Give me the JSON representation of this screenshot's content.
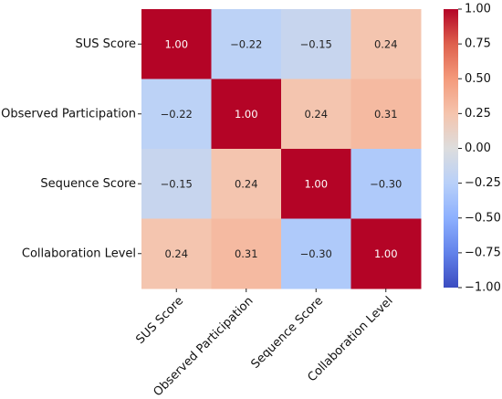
{
  "chart_data": {
    "type": "heatmap",
    "title": "",
    "row_labels": [
      "SUS Score",
      "Observed Participation",
      "Sequence Score",
      "Collaboration Level"
    ],
    "col_labels": [
      "SUS Score",
      "Observed Participation",
      "Sequence Score",
      "Collaboration Level"
    ],
    "values": [
      [
        1.0,
        -0.22,
        -0.15,
        0.24
      ],
      [
        -0.22,
        1.0,
        0.24,
        0.31
      ],
      [
        -0.15,
        0.24,
        1.0,
        -0.3
      ],
      [
        0.24,
        0.31,
        -0.3,
        1.0
      ]
    ],
    "cell_labels": [
      [
        "1.00",
        "−0.22",
        "−0.15",
        "0.24"
      ],
      [
        "−0.22",
        "1.00",
        "0.24",
        "0.31"
      ],
      [
        "−0.15",
        "0.24",
        "1.00",
        "−0.30"
      ],
      [
        "0.24",
        "0.31",
        "−0.30",
        "1.00"
      ]
    ],
    "colormap": "coolwarm",
    "colors": {
      "low": "#3b4cc0",
      "mid": "#dddddd",
      "high": "#b40426"
    },
    "vmin": -1.0,
    "vmax": 1.0,
    "colorbar": {
      "ticks": [
        1.0,
        0.75,
        0.5,
        0.25,
        0.0,
        -0.25,
        -0.5,
        -0.75,
        -1.0
      ],
      "tick_labels": [
        "1.00",
        "0.75",
        "0.50",
        "0.25",
        "0.00",
        "−0.25",
        "−0.50",
        "−0.75",
        "−1.00"
      ],
      "placement": "right"
    }
  }
}
